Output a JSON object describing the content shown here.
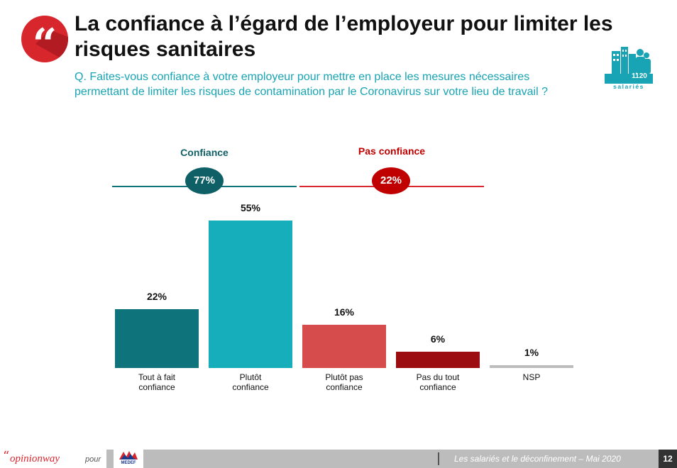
{
  "header": {
    "quote_icon": "“",
    "title": "La confiance à l’égard de l’employeur pour limiter les risques sanitaires",
    "question": "Q. Faites-vous confiance à votre employeur pour mettre en place les mesures nécessaires permettant de limiter les risques de contamination par le Coronavirus sur votre lieu de travail ?",
    "sample_size": "1120",
    "sample_label": "salariés",
    "sample_icon": "building-people-icon"
  },
  "chart_data": {
    "type": "bar",
    "title": "",
    "xlabel": "",
    "ylabel": "",
    "ylim": [
      0,
      60
    ],
    "grid": false,
    "categories": [
      "Tout à fait\nconfiance",
      "Plutôt\nconfiance",
      "Plutôt pas\nconfiance",
      "Pas du tout\nconfiance",
      "NSP"
    ],
    "values": [
      22,
      55,
      16,
      6,
      1
    ],
    "value_labels": [
      "22%",
      "55%",
      "16%",
      "6%",
      "1%"
    ],
    "colors": [
      "#0f737b",
      "#16aebb",
      "#d64b4b",
      "#9b0d10",
      "#bdbdbd"
    ],
    "groups": [
      {
        "name": "Confiance",
        "total": "77%",
        "color": "#0f5f66",
        "categories": [
          0,
          1
        ]
      },
      {
        "name": "Pas confiance",
        "total": "22%",
        "color": "#c00000",
        "categories": [
          2,
          3
        ]
      }
    ]
  },
  "footer": {
    "quote_mark": "“",
    "brand": "opinionway",
    "pour": "pour",
    "partner": "MEDEF",
    "caption": "Les salariés et le déconfinement – Mai 2020",
    "page_number": "12"
  }
}
